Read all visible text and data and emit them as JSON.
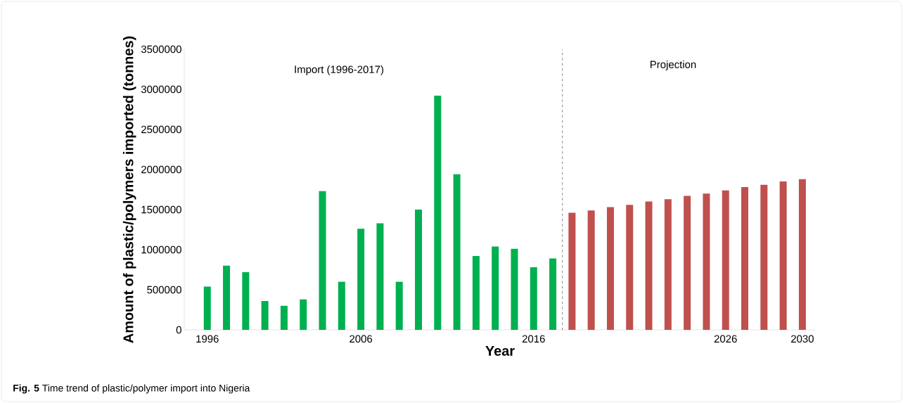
{
  "chart_data": {
    "type": "bar",
    "xlabel": "Year",
    "ylabel": "Amount of plastic/polymers imported (tonnes)",
    "categories": [
      "1996",
      null,
      null,
      null,
      null,
      null,
      null,
      null,
      "2006",
      null,
      null,
      null,
      null,
      null,
      null,
      null,
      null,
      "2016",
      null,
      null,
      null,
      null,
      null,
      null,
      null,
      null,
      null,
      "2026",
      null,
      null,
      null,
      "2030"
    ],
    "series": [
      {
        "color": "#00b050",
        "values": [
          540000,
          800000,
          720000,
          360000,
          300000,
          380000,
          1730000,
          600000,
          1260000,
          1330000,
          600000,
          1500000,
          2920000,
          1940000,
          920000,
          1040000,
          1010000,
          780000,
          890000,
          null,
          null,
          null,
          null,
          null,
          null,
          null,
          null,
          null,
          null,
          null,
          null,
          null
        ]
      },
      {
        "color": "#c0504d",
        "values": [
          null,
          null,
          null,
          null,
          null,
          null,
          null,
          null,
          null,
          null,
          null,
          null,
          null,
          null,
          null,
          null,
          null,
          null,
          null,
          1460000,
          1490000,
          1530000,
          1560000,
          1600000,
          1630000,
          1670000,
          1700000,
          1740000,
          1780000,
          1810000,
          1850000,
          1880000
        ]
      }
    ],
    "ylim": [
      0,
      3500000
    ],
    "yticks": [
      0,
      500000,
      1000000,
      1500000,
      2000000,
      2500000,
      3000000,
      3500000
    ],
    "annotations": [
      "Import (1996-2017)",
      "Projection",
      "**Fig. 5**  Time trend of plastic/polymer import into Nigeria"
    ]
  }
}
